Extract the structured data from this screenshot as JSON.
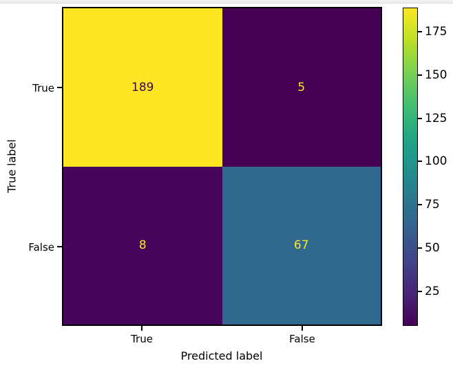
{
  "page": {
    "background_color": "#ffffff",
    "top_strip_color": "#f0f0f2"
  },
  "chart_data": {
    "type": "heatmap",
    "variant": "confusion-matrix",
    "xlabel": "Predicted label",
    "ylabel": "True label",
    "x_tick_labels": [
      "True",
      "False"
    ],
    "y_tick_labels": [
      "True",
      "False"
    ],
    "matrix": [
      [
        189,
        5
      ],
      [
        8,
        67
      ]
    ],
    "vmin": 5,
    "vmax": 189,
    "colormap": "viridis",
    "grid": false,
    "legend_position": "right-colorbar",
    "colorbar_tick_values": [
      175,
      150,
      125,
      100,
      75,
      50,
      25
    ],
    "cell_fill_colors": [
      [
        "#fde725",
        "#440154"
      ],
      [
        "#45055a",
        "#31688e"
      ]
    ],
    "cell_text_colors": [
      [
        "#440154",
        "#fde725"
      ],
      [
        "#fde725",
        "#fde725"
      ]
    ],
    "viridis_stops": [
      "#440154",
      "#482475",
      "#414487",
      "#355f8d",
      "#2a788e",
      "#21918c",
      "#22a884",
      "#44bf70",
      "#7ad151",
      "#bddf26",
      "#fde725"
    ],
    "axis_color": "#000000"
  }
}
